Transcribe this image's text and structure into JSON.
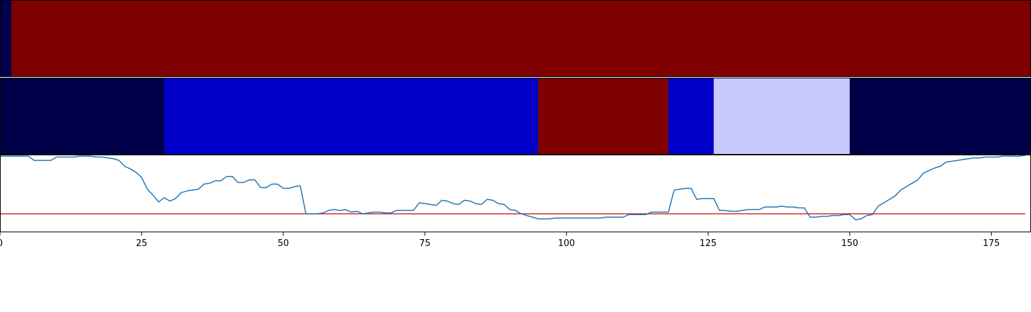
{
  "chart_data": [
    {
      "type": "heatmap",
      "segments": [
        {
          "start": 0,
          "end": 2,
          "color": "#00004c"
        },
        {
          "start": 2,
          "end": 182,
          "color": "#800000"
        }
      ],
      "xlim": [
        0,
        182
      ]
    },
    {
      "type": "heatmap",
      "segments": [
        {
          "start": 0,
          "end": 29,
          "color": "#000048"
        },
        {
          "start": 29,
          "end": 95,
          "color": "#0000c8"
        },
        {
          "start": 95,
          "end": 118,
          "color": "#7f0000"
        },
        {
          "start": 118,
          "end": 126,
          "color": "#0000c8"
        },
        {
          "start": 126,
          "end": 150,
          "color": "#c8c8ff"
        },
        {
          "start": 150,
          "end": 182,
          "color": "#000048"
        }
      ],
      "xlim": [
        0,
        182
      ]
    },
    {
      "type": "line",
      "series": [
        {
          "color": "#1f77b4",
          "x": [
            0,
            1,
            2,
            3,
            4,
            5,
            6,
            7,
            8,
            9,
            10,
            11,
            12,
            13,
            14,
            15,
            16,
            17,
            18,
            19,
            20,
            21,
            22,
            23,
            24,
            25,
            26,
            27,
            28,
            29,
            30,
            31,
            32,
            33,
            34,
            35,
            36,
            37,
            38,
            39,
            40,
            41,
            42,
            43,
            44,
            45,
            46,
            47,
            48,
            49,
            50,
            51,
            52,
            53,
            54,
            55,
            56,
            57,
            58,
            59,
            60,
            61,
            62,
            63,
            64,
            65,
            66,
            67,
            68,
            69,
            70,
            71,
            72,
            73,
            74,
            75,
            76,
            77,
            78,
            79,
            80,
            81,
            82,
            83,
            84,
            85,
            86,
            87,
            88,
            89,
            90,
            91,
            92,
            93,
            94,
            95,
            96,
            97,
            98,
            99,
            100,
            101,
            102,
            103,
            104,
            105,
            106,
            107,
            108,
            109,
            110,
            111,
            112,
            113,
            114,
            115,
            116,
            117,
            118,
            119,
            120,
            121,
            122,
            123,
            124,
            125,
            126,
            127,
            128,
            129,
            130,
            131,
            132,
            133,
            134,
            135,
            136,
            137,
            138,
            139,
            140,
            141,
            142,
            143,
            144,
            145,
            146,
            147,
            148,
            149,
            150,
            151,
            152,
            153,
            154,
            155,
            156,
            157,
            158,
            159,
            160,
            161,
            162,
            163,
            164,
            165,
            166,
            167,
            168,
            169,
            170,
            171,
            172,
            173,
            174,
            175,
            176,
            177,
            178,
            179,
            180,
            181
          ],
          "y": [
            0.99,
            0.99,
            0.99,
            0.99,
            0.99,
            0.99,
            0.94,
            0.94,
            0.94,
            0.94,
            0.98,
            0.98,
            0.98,
            0.98,
            0.99,
            0.99,
            0.99,
            0.98,
            0.98,
            0.97,
            0.96,
            0.94,
            0.87,
            0.84,
            0.8,
            0.74,
            0.6,
            0.53,
            0.45,
            0.5,
            0.46,
            0.49,
            0.56,
            0.58,
            0.59,
            0.6,
            0.66,
            0.67,
            0.7,
            0.7,
            0.75,
            0.75,
            0.68,
            0.68,
            0.71,
            0.71,
            0.62,
            0.62,
            0.66,
            0.66,
            0.61,
            0.61,
            0.63,
            0.64,
            0.31,
            0.31,
            0.31,
            0.32,
            0.35,
            0.36,
            0.35,
            0.36,
            0.33,
            0.34,
            0.31,
            0.32,
            0.33,
            0.33,
            0.32,
            0.32,
            0.35,
            0.35,
            0.35,
            0.35,
            0.44,
            0.43,
            0.42,
            0.41,
            0.47,
            0.46,
            0.43,
            0.42,
            0.47,
            0.46,
            0.43,
            0.42,
            0.48,
            0.47,
            0.43,
            0.42,
            0.36,
            0.35,
            0.31,
            0.29,
            0.27,
            0.25,
            0.25,
            0.25,
            0.26,
            0.26,
            0.26,
            0.26,
            0.26,
            0.26,
            0.26,
            0.26,
            0.26,
            0.27,
            0.27,
            0.27,
            0.27,
            0.3,
            0.3,
            0.3,
            0.3,
            0.33,
            0.33,
            0.33,
            0.33,
            0.59,
            0.6,
            0.61,
            0.61,
            0.48,
            0.49,
            0.49,
            0.49,
            0.35,
            0.35,
            0.34,
            0.34,
            0.35,
            0.36,
            0.36,
            0.36,
            0.39,
            0.39,
            0.39,
            0.4,
            0.39,
            0.39,
            0.38,
            0.38,
            0.27,
            0.27,
            0.28,
            0.28,
            0.29,
            0.29,
            0.3,
            0.3,
            0.24,
            0.25,
            0.29,
            0.3,
            0.4,
            0.44,
            0.48,
            0.52,
            0.59,
            0.63,
            0.67,
            0.71,
            0.79,
            0.82,
            0.85,
            0.87,
            0.92,
            0.93,
            0.94,
            0.95,
            0.96,
            0.97,
            0.97,
            0.98,
            0.98,
            0.98,
            0.99,
            0.99,
            0.99,
            0.99,
            1.0
          ]
        }
      ],
      "hline": {
        "y": 0.31,
        "color": "#d62728"
      },
      "ylim": [
        0.1,
        1.0
      ],
      "xlim": [
        0,
        182
      ],
      "xticks": [
        "0",
        "25",
        "50",
        "75",
        "100",
        "125",
        "150",
        "175"
      ],
      "xtick_values": [
        0,
        25,
        50,
        75,
        100,
        125,
        150,
        175
      ],
      "grid": false
    }
  ]
}
